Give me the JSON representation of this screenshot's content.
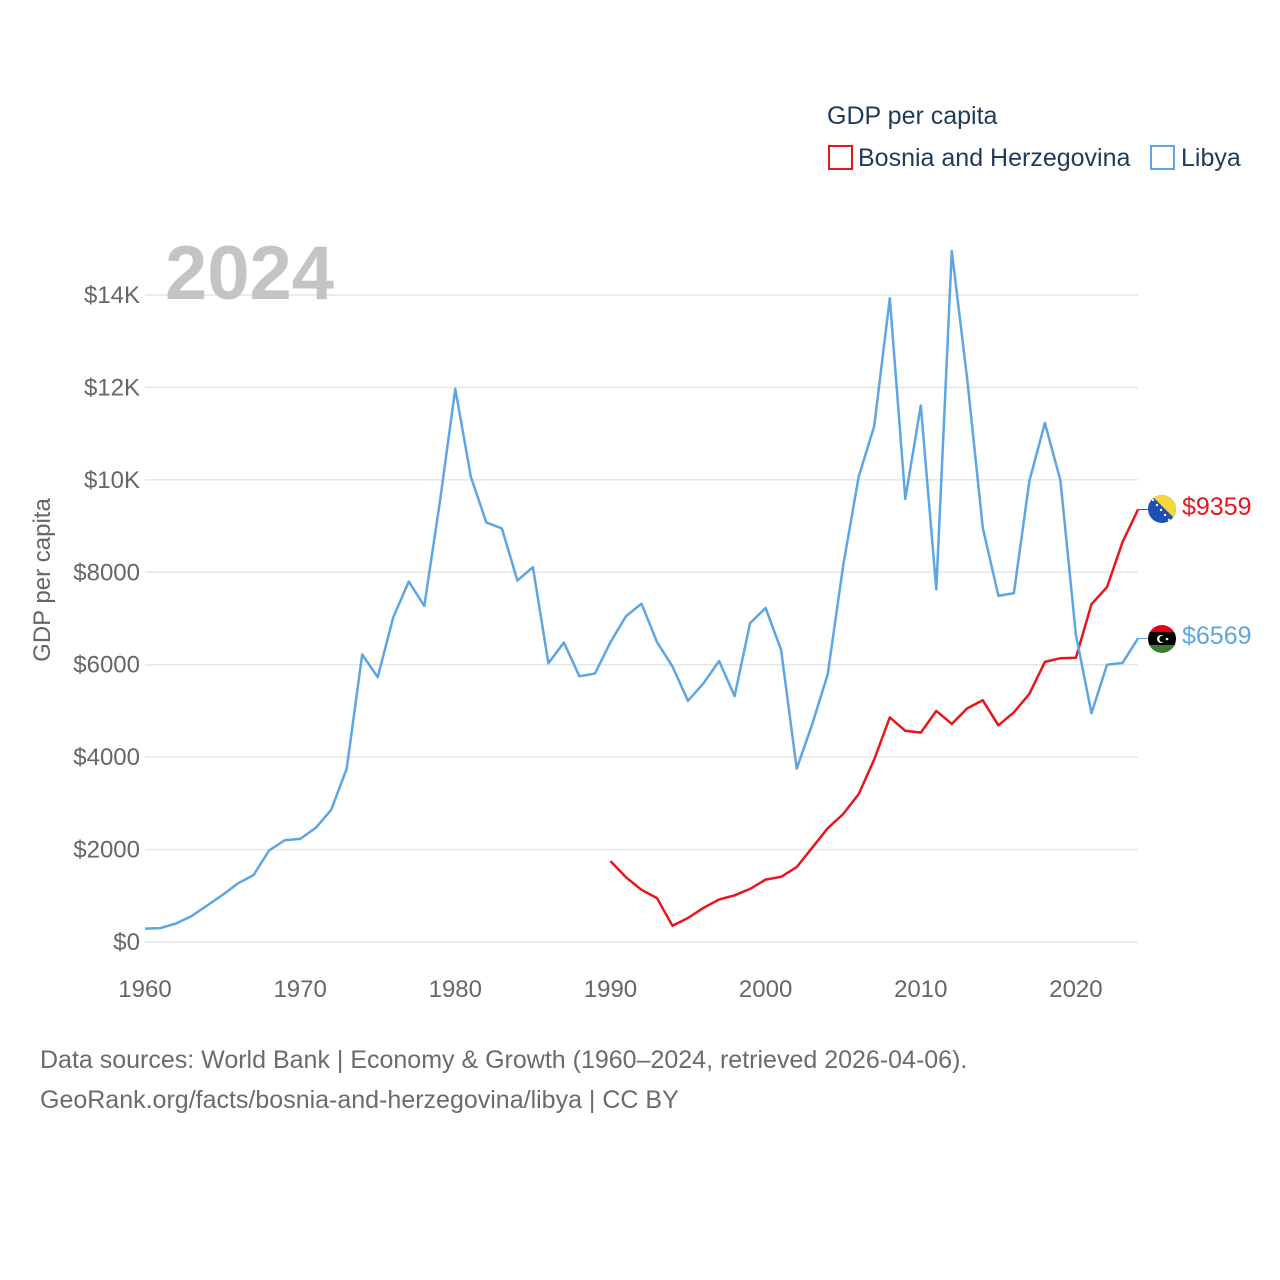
{
  "chart_data": {
    "type": "line",
    "title": "GDP per capita",
    "year_label": "2024",
    "ylabel": "GDP per capita",
    "xlabel": "",
    "xlim": [
      1960,
      2024
    ],
    "ylim": [
      0,
      15000
    ],
    "x_ticks": [
      1960,
      1970,
      1980,
      1990,
      2000,
      2010,
      2020
    ],
    "x_tick_labels": [
      "1960",
      "1970",
      "1980",
      "1990",
      "2000",
      "2010",
      "2020"
    ],
    "y_ticks": [
      0,
      2000,
      4000,
      6000,
      8000,
      10000,
      12000,
      14000
    ],
    "y_tick_labels": [
      "$0",
      "$2000",
      "$4000",
      "$6000",
      "$8000",
      "$10K",
      "$12K",
      "$14K"
    ],
    "grid": true,
    "legend_position": "top-right",
    "series": [
      {
        "name": "Bosnia and Herzegovina",
        "color": "#e8161b",
        "end_label": "$9359",
        "x": [
          1990,
          1991,
          1992,
          1993,
          1994,
          1995,
          1996,
          1997,
          1998,
          1999,
          2000,
          2001,
          2002,
          2003,
          2004,
          2005,
          2006,
          2007,
          2008,
          2009,
          2010,
          2011,
          2012,
          2013,
          2014,
          2015,
          2016,
          2017,
          2018,
          2019,
          2020,
          2021,
          2022,
          2023,
          2024
        ],
        "values": [
          1750,
          1400,
          1130,
          950,
          350,
          520,
          740,
          920,
          1010,
          1150,
          1350,
          1410,
          1620,
          2040,
          2460,
          2770,
          3200,
          3950,
          4860,
          4570,
          4530,
          5000,
          4720,
          5060,
          5230,
          4690,
          4970,
          5370,
          6060,
          6140,
          6150,
          7310,
          7680,
          8650,
          9359
        ]
      },
      {
        "name": "Libya",
        "color": "#5da5e3",
        "end_label": "$6569",
        "x": [
          1960,
          1961,
          1962,
          1963,
          1964,
          1965,
          1966,
          1967,
          1968,
          1969,
          1970,
          1971,
          1972,
          1973,
          1974,
          1975,
          1976,
          1977,
          1978,
          1979,
          1980,
          1981,
          1982,
          1983,
          1984,
          1985,
          1986,
          1987,
          1988,
          1989,
          1990,
          1991,
          1992,
          1993,
          1994,
          1995,
          1996,
          1997,
          1998,
          1999,
          2000,
          2001,
          2002,
          2003,
          2004,
          2005,
          2006,
          2007,
          2008,
          2009,
          2010,
          2011,
          2012,
          2013,
          2014,
          2015,
          2016,
          2017,
          2018,
          2019,
          2020,
          2021,
          2022,
          2023,
          2024
        ],
        "values": [
          290,
          300,
          400,
          560,
          790,
          1020,
          1270,
          1450,
          1980,
          2200,
          2230,
          2470,
          2860,
          3750,
          6220,
          5730,
          7030,
          7800,
          7270,
          9510,
          11970,
          10070,
          9080,
          8950,
          7820,
          8110,
          6030,
          6480,
          5750,
          5810,
          6490,
          7050,
          7320,
          6490,
          5960,
          5220,
          5600,
          6080,
          5320,
          6900,
          7230,
          6320,
          3750,
          4710,
          5790,
          8150,
          10070,
          11160,
          13930,
          9590,
          11610,
          7630,
          14950,
          12160,
          8960,
          7490,
          7550,
          9980,
          11230,
          9990,
          6650,
          4950,
          6000,
          6040,
          6569
        ]
      }
    ]
  },
  "footer": {
    "line1": "Data sources: World Bank | Economy & Growth (1960–2024, retrieved 2026-04-06).",
    "line2": "GeoRank.org/facts/bosnia-and-herzegovina/libya | CC BY"
  }
}
